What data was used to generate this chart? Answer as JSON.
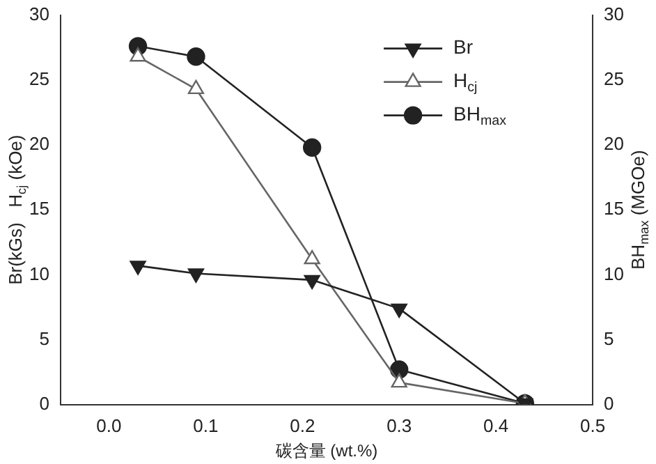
{
  "chart_data": {
    "type": "line",
    "xlabel": "碳含量 (wt.%)",
    "ylabel": "Br(kGs)   H$_{cj}$ (kOe)",
    "y2label": "BH$_{max}$ (MGOe)",
    "x": [
      0.03,
      0.09,
      0.21,
      0.3,
      0.43
    ],
    "xlim": [
      -0.05,
      0.5
    ],
    "xticks": [
      {
        "value": 0,
        "label": "0.0"
      },
      0.1,
      0.2,
      0.3,
      0.4,
      0.5
    ],
    "ylim": [
      0,
      30
    ],
    "yticks": [
      0,
      5,
      10,
      15,
      20,
      25,
      30
    ],
    "y2lim": [
      0,
      30
    ],
    "y2ticks": [
      0,
      5,
      10,
      15,
      20,
      25,
      30
    ],
    "grid": false,
    "legend": "top right",
    "line_style": "solid",
    "series": [
      {
        "name": "Br",
        "color": "#222222",
        "marker": "triangle",
        "values": [
          10.7,
          10.1,
          9.6,
          7.4,
          0.1
        ]
      },
      {
        "name": "H$_{cj}$",
        "color": "#666666",
        "marker": "triangle",
        "values": [
          26.8,
          24.3,
          11.2,
          1.7,
          0.1
        ]
      },
      {
        "name": "BH$_{max}$",
        "color": "#222222",
        "marker": "circle",
        "axis": "y2",
        "values": [
          27.6,
          26.8,
          19.8,
          2.7,
          0.1
        ]
      }
    ]
  }
}
